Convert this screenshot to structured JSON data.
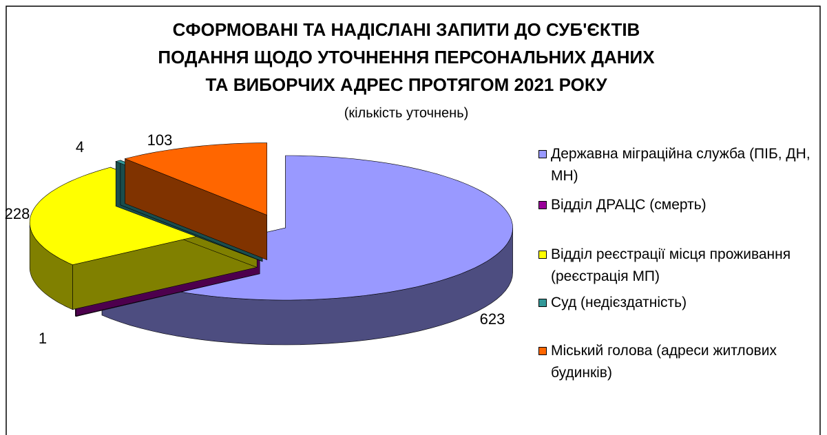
{
  "chart_data": {
    "type": "pie3d",
    "title": [
      "СФОРМОВАНІ ТА НАДІСЛАНІ ЗАПИТИ ДО СУБ'ЄКТІВ",
      "ПОДАННЯ ЩОДО УТОЧНЕННЯ ПЕРСОНАЛЬНИХ ДАНИХ",
      "ТА ВИБОРЧИХ АДРЕС ПРОТЯГОМ 2021 РОКУ"
    ],
    "subtitle": "(кількість уточнень)",
    "categories": [
      "Державна міграційна служба (ПІБ, ДН, МН)",
      "Відділ ДРАЦС (смерть)",
      "Відділ реєстрації місця проживання (реєстрація МП)",
      "Суд (недієздатність)",
      "Міський голова (адреси житлових будинків)"
    ],
    "values": [
      623,
      1,
      228,
      4,
      103
    ],
    "colors": [
      "#9999ff",
      "#990099",
      "#ffff00",
      "#339999",
      "#ff6600"
    ]
  }
}
